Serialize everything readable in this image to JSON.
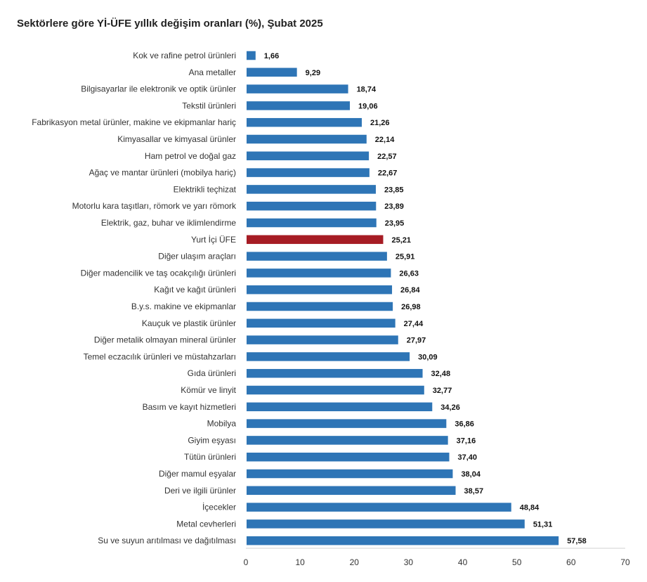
{
  "chart_data": {
    "type": "bar",
    "orientation": "horizontal",
    "title": "Sektörlere göre Yİ-ÜFE yıllık değişim oranları (%), Şubat 2025",
    "xlabel": "",
    "ylabel": "",
    "xlim": [
      0,
      70
    ],
    "x_ticks": [
      "0",
      "10",
      "20",
      "30",
      "40",
      "50",
      "60",
      "70"
    ],
    "x_tick_values": [
      0,
      10,
      20,
      30,
      40,
      50,
      60,
      70
    ],
    "grid": false,
    "colors": {
      "default": "#2e75b6",
      "highlight": "#a61c24"
    },
    "highlight_category": "Yurt İçi ÜFE",
    "categories": [
      "Kok ve rafine petrol ürünleri",
      "Ana metaller",
      "Bilgisayarlar ile elektronik ve optik ürünler",
      "Tekstil ürünleri",
      "Fabrikasyon metal ürünler, makine ve ekipmanlar hariç",
      "Kimyasallar ve kimyasal ürünler",
      "Ham petrol ve doğal gaz",
      "Ağaç ve mantar ürünleri (mobilya hariç)",
      "Elektrikli teçhizat",
      "Motorlu kara taşıtları, römork ve yarı römork",
      "Elektrik, gaz, buhar ve iklimlendirme",
      "Yurt İçi ÜFE",
      "Diğer ulaşım araçları",
      "Diğer madencilik ve taş ocakçılığı ürünleri",
      "Kağıt ve kağıt ürünleri",
      "B.y.s. makine ve ekipmanlar",
      "Kauçuk ve plastik ürünler",
      "Diğer metalik olmayan mineral ürünler",
      "Temel eczacılık ürünleri ve müstahzarları",
      "Gıda ürünleri",
      "Kömür ve linyit",
      "Basım ve kayıt hizmetleri",
      "Mobilya",
      "Giyim eşyası",
      "Tütün ürünleri",
      "Diğer mamul eşyalar",
      "Deri ve ilgili ürünler",
      "İçecekler",
      "Metal cevherleri",
      "Su ve suyun arıtılması ve dağıtılması"
    ],
    "values": [
      1.66,
      9.29,
      18.74,
      19.06,
      21.26,
      22.14,
      22.57,
      22.67,
      23.85,
      23.89,
      23.95,
      25.21,
      25.91,
      26.63,
      26.84,
      26.98,
      27.44,
      27.97,
      30.09,
      32.48,
      32.77,
      34.26,
      36.86,
      37.16,
      37.4,
      38.04,
      38.57,
      48.84,
      51.31,
      57.58
    ],
    "value_labels": [
      "1,66",
      "9,29",
      "18,74",
      "19,06",
      "21,26",
      "22,14",
      "22,57",
      "22,67",
      "23,85",
      "23,89",
      "23,95",
      "25,21",
      "25,91",
      "26,63",
      "26,84",
      "26,98",
      "27,44",
      "27,97",
      "30,09",
      "32,48",
      "32,77",
      "34,26",
      "36,86",
      "37,16",
      "37,40",
      "38,04",
      "38,57",
      "48,84",
      "51,31",
      "57,58"
    ]
  }
}
